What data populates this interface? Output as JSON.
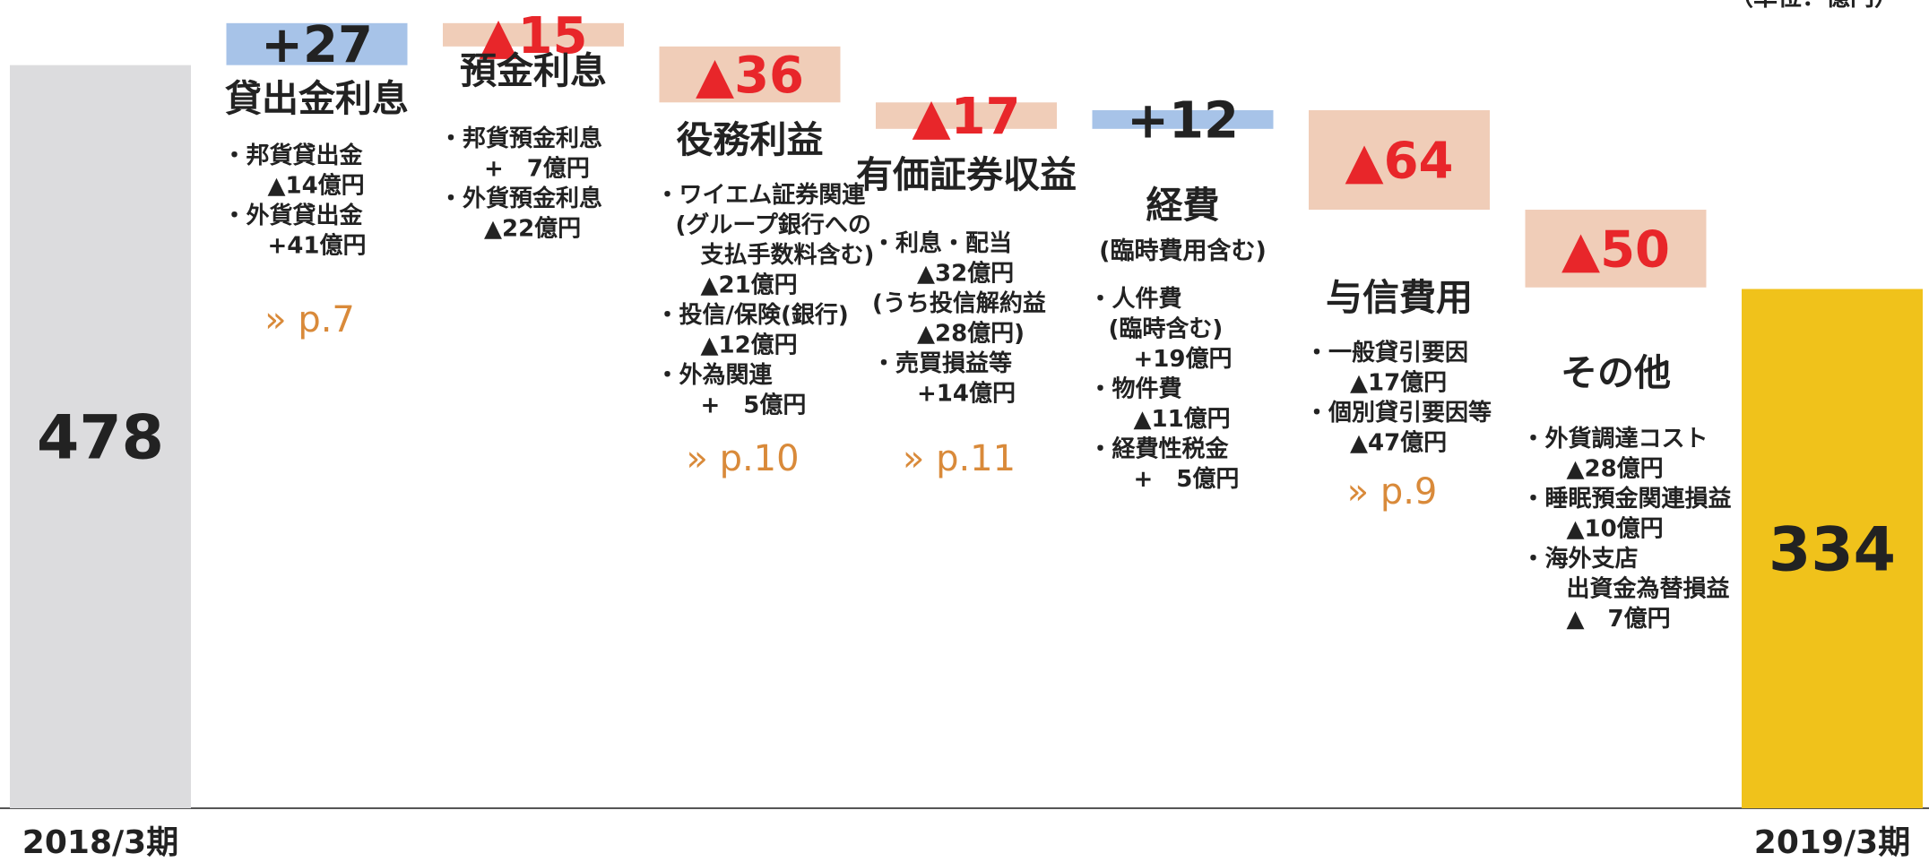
{
  "chart_data": {
    "type": "waterfall",
    "unit": "（単位：億円）",
    "categories": [
      "2018/3期",
      "貸出金利息",
      "預金利息",
      "役務利益",
      "有価証券収益",
      "経費",
      "与信費用",
      "その他",
      "2019/3期"
    ],
    "values": [
      478,
      27,
      -15,
      -36,
      -17,
      12,
      -64,
      -50,
      334
    ],
    "value_labels": [
      "478",
      "+27",
      "▲15",
      "▲36",
      "▲17",
      "+12",
      "▲64",
      "▲50",
      "334"
    ],
    "subtitles": [
      null,
      null,
      null,
      null,
      null,
      "(臨時費用含む)",
      null,
      null,
      null
    ],
    "details": [
      null,
      [
        "・邦貨貸出金",
        "▲14億円",
        "・外貨貸出金",
        "+41億円"
      ],
      [
        "・邦貨預金利息",
        "+　7億円",
        "・外貨預金利息",
        "▲22億円"
      ],
      [
        "・ワイエム証券関連",
        "(グループ銀行への",
        "支払手数料含む)",
        "▲21億円",
        "・投信/保険(銀行)",
        "▲12億円",
        "・外為関連",
        "+　5億円"
      ],
      [
        "・利息・配当",
        "▲32億円",
        "(うち投信解約益",
        "▲28億円)",
        "・売買損益等",
        "+14億円"
      ],
      [
        "・人件費",
        "(臨時含む)",
        "+19億円",
        "・物件費",
        "▲11億円",
        "・経費性税金",
        "+　5億円"
      ],
      [
        "・一般貸引要因",
        "▲17億円",
        "・個別貸引要因等",
        "▲47億円"
      ],
      [
        "・外貨調達コスト",
        "▲28億円",
        "・睡眠預金関連損益",
        "▲10億円",
        "・海外支店",
        "出資金為替損益",
        "▲　7億円"
      ],
      null
    ],
    "links": [
      null,
      "» p.7",
      null,
      "» p.10",
      "» p.11",
      null,
      "» p.9",
      null,
      null
    ],
    "colors": {
      "start": "#dcdcde",
      "increase": "#a7c3e8",
      "decrease": "#f0cdb8",
      "end": "#f0c21b",
      "decrease_label": "#e8262a",
      "label": "#222222"
    }
  }
}
